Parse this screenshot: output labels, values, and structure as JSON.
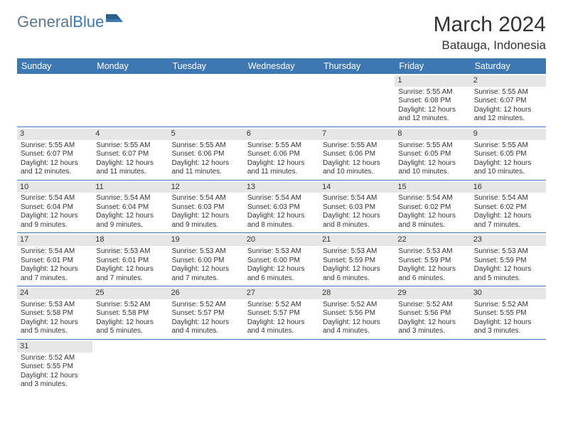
{
  "branding": {
    "logo_part1": "General",
    "logo_part2": "Blue",
    "logo_color1": "#5a7a8c",
    "logo_color2": "#3e78b2"
  },
  "title": {
    "month_year": "March 2024",
    "location": "Batauga, Indonesia"
  },
  "colors": {
    "header_bg": "#3e78b2",
    "header_fg": "#ffffff",
    "daynum_bg": "#e6e6e6",
    "border": "#3e78b2"
  },
  "day_headers": [
    "Sunday",
    "Monday",
    "Tuesday",
    "Wednesday",
    "Thursday",
    "Friday",
    "Saturday"
  ],
  "weeks": [
    [
      null,
      null,
      null,
      null,
      null,
      {
        "n": "1",
        "lines": [
          "Sunrise: 5:55 AM",
          "Sunset: 6:08 PM",
          "Daylight: 12 hours",
          "and 12 minutes."
        ]
      },
      {
        "n": "2",
        "lines": [
          "Sunrise: 5:55 AM",
          "Sunset: 6:07 PM",
          "Daylight: 12 hours",
          "and 12 minutes."
        ]
      }
    ],
    [
      {
        "n": "3",
        "lines": [
          "Sunrise: 5:55 AM",
          "Sunset: 6:07 PM",
          "Daylight: 12 hours",
          "and 12 minutes."
        ]
      },
      {
        "n": "4",
        "lines": [
          "Sunrise: 5:55 AM",
          "Sunset: 6:07 PM",
          "Daylight: 12 hours",
          "and 11 minutes."
        ]
      },
      {
        "n": "5",
        "lines": [
          "Sunrise: 5:55 AM",
          "Sunset: 6:06 PM",
          "Daylight: 12 hours",
          "and 11 minutes."
        ]
      },
      {
        "n": "6",
        "lines": [
          "Sunrise: 5:55 AM",
          "Sunset: 6:06 PM",
          "Daylight: 12 hours",
          "and 11 minutes."
        ]
      },
      {
        "n": "7",
        "lines": [
          "Sunrise: 5:55 AM",
          "Sunset: 6:06 PM",
          "Daylight: 12 hours",
          "and 10 minutes."
        ]
      },
      {
        "n": "8",
        "lines": [
          "Sunrise: 5:55 AM",
          "Sunset: 6:05 PM",
          "Daylight: 12 hours",
          "and 10 minutes."
        ]
      },
      {
        "n": "9",
        "lines": [
          "Sunrise: 5:55 AM",
          "Sunset: 6:05 PM",
          "Daylight: 12 hours",
          "and 10 minutes."
        ]
      }
    ],
    [
      {
        "n": "10",
        "lines": [
          "Sunrise: 5:54 AM",
          "Sunset: 6:04 PM",
          "Daylight: 12 hours",
          "and 9 minutes."
        ]
      },
      {
        "n": "11",
        "lines": [
          "Sunrise: 5:54 AM",
          "Sunset: 6:04 PM",
          "Daylight: 12 hours",
          "and 9 minutes."
        ]
      },
      {
        "n": "12",
        "lines": [
          "Sunrise: 5:54 AM",
          "Sunset: 6:03 PM",
          "Daylight: 12 hours",
          "and 9 minutes."
        ]
      },
      {
        "n": "13",
        "lines": [
          "Sunrise: 5:54 AM",
          "Sunset: 6:03 PM",
          "Daylight: 12 hours",
          "and 8 minutes."
        ]
      },
      {
        "n": "14",
        "lines": [
          "Sunrise: 5:54 AM",
          "Sunset: 6:03 PM",
          "Daylight: 12 hours",
          "and 8 minutes."
        ]
      },
      {
        "n": "15",
        "lines": [
          "Sunrise: 5:54 AM",
          "Sunset: 6:02 PM",
          "Daylight: 12 hours",
          "and 8 minutes."
        ]
      },
      {
        "n": "16",
        "lines": [
          "Sunrise: 5:54 AM",
          "Sunset: 6:02 PM",
          "Daylight: 12 hours",
          "and 7 minutes."
        ]
      }
    ],
    [
      {
        "n": "17",
        "lines": [
          "Sunrise: 5:54 AM",
          "Sunset: 6:01 PM",
          "Daylight: 12 hours",
          "and 7 minutes."
        ]
      },
      {
        "n": "18",
        "lines": [
          "Sunrise: 5:53 AM",
          "Sunset: 6:01 PM",
          "Daylight: 12 hours",
          "and 7 minutes."
        ]
      },
      {
        "n": "19",
        "lines": [
          "Sunrise: 5:53 AM",
          "Sunset: 6:00 PM",
          "Daylight: 12 hours",
          "and 7 minutes."
        ]
      },
      {
        "n": "20",
        "lines": [
          "Sunrise: 5:53 AM",
          "Sunset: 6:00 PM",
          "Daylight: 12 hours",
          "and 6 minutes."
        ]
      },
      {
        "n": "21",
        "lines": [
          "Sunrise: 5:53 AM",
          "Sunset: 5:59 PM",
          "Daylight: 12 hours",
          "and 6 minutes."
        ]
      },
      {
        "n": "22",
        "lines": [
          "Sunrise: 5:53 AM",
          "Sunset: 5:59 PM",
          "Daylight: 12 hours",
          "and 6 minutes."
        ]
      },
      {
        "n": "23",
        "lines": [
          "Sunrise: 5:53 AM",
          "Sunset: 5:59 PM",
          "Daylight: 12 hours",
          "and 5 minutes."
        ]
      }
    ],
    [
      {
        "n": "24",
        "lines": [
          "Sunrise: 5:53 AM",
          "Sunset: 5:58 PM",
          "Daylight: 12 hours",
          "and 5 minutes."
        ]
      },
      {
        "n": "25",
        "lines": [
          "Sunrise: 5:52 AM",
          "Sunset: 5:58 PM",
          "Daylight: 12 hours",
          "and 5 minutes."
        ]
      },
      {
        "n": "26",
        "lines": [
          "Sunrise: 5:52 AM",
          "Sunset: 5:57 PM",
          "Daylight: 12 hours",
          "and 4 minutes."
        ]
      },
      {
        "n": "27",
        "lines": [
          "Sunrise: 5:52 AM",
          "Sunset: 5:57 PM",
          "Daylight: 12 hours",
          "and 4 minutes."
        ]
      },
      {
        "n": "28",
        "lines": [
          "Sunrise: 5:52 AM",
          "Sunset: 5:56 PM",
          "Daylight: 12 hours",
          "and 4 minutes."
        ]
      },
      {
        "n": "29",
        "lines": [
          "Sunrise: 5:52 AM",
          "Sunset: 5:56 PM",
          "Daylight: 12 hours",
          "and 3 minutes."
        ]
      },
      {
        "n": "30",
        "lines": [
          "Sunrise: 5:52 AM",
          "Sunset: 5:55 PM",
          "Daylight: 12 hours",
          "and 3 minutes."
        ]
      }
    ],
    [
      {
        "n": "31",
        "lines": [
          "Sunrise: 5:52 AM",
          "Sunset: 5:55 PM",
          "Daylight: 12 hours",
          "and 3 minutes."
        ]
      },
      null,
      null,
      null,
      null,
      null,
      null
    ]
  ]
}
